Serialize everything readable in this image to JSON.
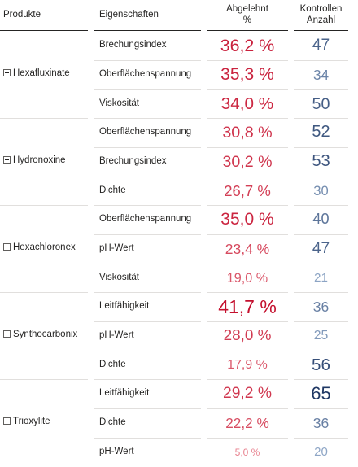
{
  "header": {
    "product": "Produkte",
    "property": "Eigenschaften",
    "rejected_line1": "Abgelehnt",
    "rejected_line2": "%",
    "controls_line1": "Kontrollen",
    "controls_line2": "Anzahl"
  },
  "groups": [
    {
      "product": "Hexafluxinate",
      "rows": [
        {
          "property": "Brechungsindex",
          "rejected": "36,2 %",
          "rejected_value": 36.2,
          "count": "47",
          "count_value": 47
        },
        {
          "property": "Oberflächenspannung",
          "rejected": "35,3 %",
          "rejected_value": 35.3,
          "count": "34",
          "count_value": 34
        },
        {
          "property": "Viskosität",
          "rejected": "34,0 %",
          "rejected_value": 34.0,
          "count": "50",
          "count_value": 50
        }
      ]
    },
    {
      "product": "Hydronoxine",
      "rows": [
        {
          "property": "Oberflächenspannung",
          "rejected": "30,8 %",
          "rejected_value": 30.8,
          "count": "52",
          "count_value": 52
        },
        {
          "property": "Brechungsindex",
          "rejected": "30,2 %",
          "rejected_value": 30.2,
          "count": "53",
          "count_value": 53
        },
        {
          "property": "Dichte",
          "rejected": "26,7 %",
          "rejected_value": 26.7,
          "count": "30",
          "count_value": 30
        }
      ]
    },
    {
      "product": "Hexachloronex",
      "rows": [
        {
          "property": "Oberflächenspannung",
          "rejected": "35,0 %",
          "rejected_value": 35.0,
          "count": "40",
          "count_value": 40
        },
        {
          "property": "pH-Wert",
          "rejected": "23,4 %",
          "rejected_value": 23.4,
          "count": "47",
          "count_value": 47
        },
        {
          "property": "Viskosität",
          "rejected": "19,0 %",
          "rejected_value": 19.0,
          "count": "21",
          "count_value": 21
        }
      ]
    },
    {
      "product": "Synthocarbonix",
      "rows": [
        {
          "property": "Leitfähigkeit",
          "rejected": "41,7 %",
          "rejected_value": 41.7,
          "count": "36",
          "count_value": 36
        },
        {
          "property": "pH-Wert",
          "rejected": "28,0 %",
          "rejected_value": 28.0,
          "count": "25",
          "count_value": 25
        },
        {
          "property": "Dichte",
          "rejected": "17,9 %",
          "rejected_value": 17.9,
          "count": "56",
          "count_value": 56
        }
      ]
    },
    {
      "product": "Trioxylite",
      "rows": [
        {
          "property": "Leitfähigkeit",
          "rejected": "29,2 %",
          "rejected_value": 29.2,
          "count": "65",
          "count_value": 65
        },
        {
          "property": "Dichte",
          "rejected": "22,2 %",
          "rejected_value": 22.2,
          "count": "36",
          "count_value": 36
        },
        {
          "property": "pH-Wert",
          "rejected": "5,0 %",
          "rejected_value": 5.0,
          "count": "20",
          "count_value": 20
        }
      ]
    }
  ],
  "colors": {
    "rejected_high": "#c4102e",
    "rejected_low": "#e8828f",
    "count_high": "#1f3864",
    "count_low": "#8ea6c6"
  },
  "icons": {
    "expand": "plus-square-icon"
  }
}
